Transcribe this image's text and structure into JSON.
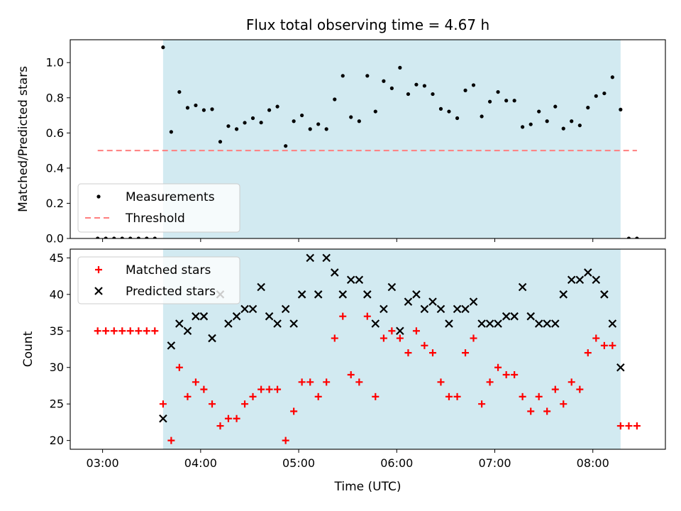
{
  "chart_data": [
    {
      "type": "scatter",
      "title": "Flux total observing time = 4.67 h",
      "xlabel": "",
      "ylabel": "Matched/Predicted stars",
      "ylim": [
        0,
        1.13
      ],
      "yticks": [
        "0.0",
        "0.2",
        "0.4",
        "0.6",
        "0.8",
        "1.0"
      ],
      "xlim": [
        2.67,
        8.74
      ],
      "xticks": [
        "03:00",
        "04:00",
        "05:00",
        "06:00",
        "07:00",
        "08:00"
      ],
      "shaded_interval": [
        3.617,
        8.283
      ],
      "shade_color": "#add8e6",
      "legend": {
        "location": "lower-left",
        "entries": [
          "Measurements",
          "Threshold"
        ]
      },
      "series": [
        {
          "name": "Measurements",
          "marker": "dot",
          "color": "#000000",
          "x": [
            2.95,
            3.033,
            3.117,
            3.2,
            3.283,
            3.367,
            3.45,
            3.533,
            3.617,
            3.7,
            3.783,
            3.867,
            3.95,
            4.033,
            4.117,
            4.2,
            4.283,
            4.367,
            4.45,
            4.533,
            4.617,
            4.7,
            4.783,
            4.867,
            4.95,
            5.033,
            5.117,
            5.2,
            5.283,
            5.367,
            5.45,
            5.533,
            5.617,
            5.7,
            5.783,
            5.867,
            5.95,
            6.033,
            6.117,
            6.2,
            6.283,
            6.367,
            6.45,
            6.533,
            6.617,
            6.7,
            6.783,
            6.867,
            6.95,
            7.033,
            7.117,
            7.2,
            7.283,
            7.367,
            7.45,
            7.533,
            7.617,
            7.7,
            7.783,
            7.867,
            7.95,
            8.033,
            8.117,
            8.2,
            8.283,
            8.367,
            8.45
          ],
          "y": [
            0,
            0,
            0,
            0,
            0,
            0,
            0,
            0,
            1.087,
            0.606,
            0.833,
            0.743,
            0.757,
            0.73,
            0.735,
            0.55,
            0.639,
            0.622,
            0.658,
            0.684,
            0.659,
            0.73,
            0.75,
            0.526,
            0.667,
            0.7,
            0.622,
            0.65,
            0.622,
            0.791,
            0.925,
            0.69,
            0.667,
            0.925,
            0.722,
            0.895,
            0.854,
            0.971,
            0.821,
            0.875,
            0.868,
            0.821,
            0.737,
            0.722,
            0.684,
            0.842,
            0.872,
            0.694,
            0.778,
            0.833,
            0.784,
            0.784,
            0.634,
            0.649,
            0.722,
            0.667,
            0.75,
            0.625,
            0.667,
            0.643,
            0.744,
            0.81,
            0.825,
            0.917,
            0.733,
            0,
            0
          ]
        },
        {
          "name": "Threshold",
          "style": "dashed",
          "color": "#ff7f7f",
          "x": [
            2.95,
            8.45
          ],
          "y": [
            0.5,
            0.5
          ]
        }
      ]
    },
    {
      "type": "scatter",
      "title": "",
      "xlabel": "Time (UTC)",
      "ylabel": "Count",
      "ylim": [
        18.8,
        46.2
      ],
      "yticks": [
        "20",
        "25",
        "30",
        "35",
        "40",
        "45"
      ],
      "xlim": [
        2.67,
        8.74
      ],
      "xticks": [
        "03:00",
        "04:00",
        "05:00",
        "06:00",
        "07:00",
        "08:00"
      ],
      "shaded_interval": [
        3.617,
        8.283
      ],
      "shade_color": "#add8e6",
      "legend": {
        "location": "upper-left",
        "entries": [
          "Matched stars",
          "Predicted stars"
        ]
      },
      "series": [
        {
          "name": "Matched stars",
          "marker": "plus",
          "color": "#ff0000",
          "x": [
            2.95,
            3.033,
            3.117,
            3.2,
            3.283,
            3.367,
            3.45,
            3.533,
            3.617,
            3.7,
            3.783,
            3.867,
            3.95,
            4.033,
            4.117,
            4.2,
            4.283,
            4.367,
            4.45,
            4.533,
            4.617,
            4.7,
            4.783,
            4.867,
            4.95,
            5.033,
            5.117,
            5.2,
            5.283,
            5.367,
            5.45,
            5.533,
            5.617,
            5.7,
            5.783,
            5.867,
            5.95,
            6.033,
            6.117,
            6.2,
            6.283,
            6.367,
            6.45,
            6.533,
            6.617,
            6.7,
            6.783,
            6.867,
            6.95,
            7.033,
            7.117,
            7.2,
            7.283,
            7.367,
            7.45,
            7.533,
            7.617,
            7.7,
            7.783,
            7.867,
            7.95,
            8.033,
            8.117,
            8.2,
            8.283,
            8.367,
            8.45
          ],
          "y": [
            35,
            35,
            35,
            35,
            35,
            35,
            35,
            35,
            25,
            20,
            30,
            26,
            28,
            27,
            25,
            22,
            23,
            23,
            25,
            26,
            27,
            27,
            27,
            20,
            24,
            28,
            28,
            26,
            28,
            34,
            37,
            29,
            28,
            37,
            26,
            34,
            35,
            34,
            32,
            35,
            33,
            32,
            28,
            26,
            26,
            32,
            34,
            25,
            28,
            30,
            29,
            29,
            26,
            24,
            26,
            24,
            27,
            25,
            28,
            27,
            32,
            34,
            33,
            33,
            22,
            22,
            22
          ]
        },
        {
          "name": "Predicted stars",
          "marker": "x",
          "color": "#000000",
          "x": [
            3.617,
            3.7,
            3.783,
            3.867,
            3.95,
            4.033,
            4.117,
            4.2,
            4.283,
            4.367,
            4.45,
            4.533,
            4.617,
            4.7,
            4.783,
            4.867,
            4.95,
            5.033,
            5.117,
            5.2,
            5.283,
            5.367,
            5.45,
            5.533,
            5.617,
            5.7,
            5.783,
            5.867,
            5.95,
            6.033,
            6.117,
            6.2,
            6.283,
            6.367,
            6.45,
            6.533,
            6.617,
            6.7,
            6.783,
            6.867,
            6.95,
            7.033,
            7.117,
            7.2,
            7.283,
            7.367,
            7.45,
            7.533,
            7.617,
            7.7,
            7.783,
            7.867,
            7.95,
            8.033,
            8.117,
            8.2,
            8.283
          ],
          "y": [
            23,
            33,
            36,
            35,
            37,
            37,
            34,
            40,
            36,
            37,
            38,
            38,
            41,
            37,
            36,
            38,
            36,
            40,
            45,
            40,
            45,
            43,
            40,
            42,
            42,
            40,
            36,
            38,
            41,
            35,
            39,
            40,
            38,
            39,
            38,
            36,
            38,
            38,
            39,
            36,
            36,
            36,
            37,
            37,
            41,
            37,
            36,
            36,
            36,
            40,
            42,
            42,
            43,
            42,
            40,
            36,
            30
          ]
        }
      ]
    }
  ]
}
